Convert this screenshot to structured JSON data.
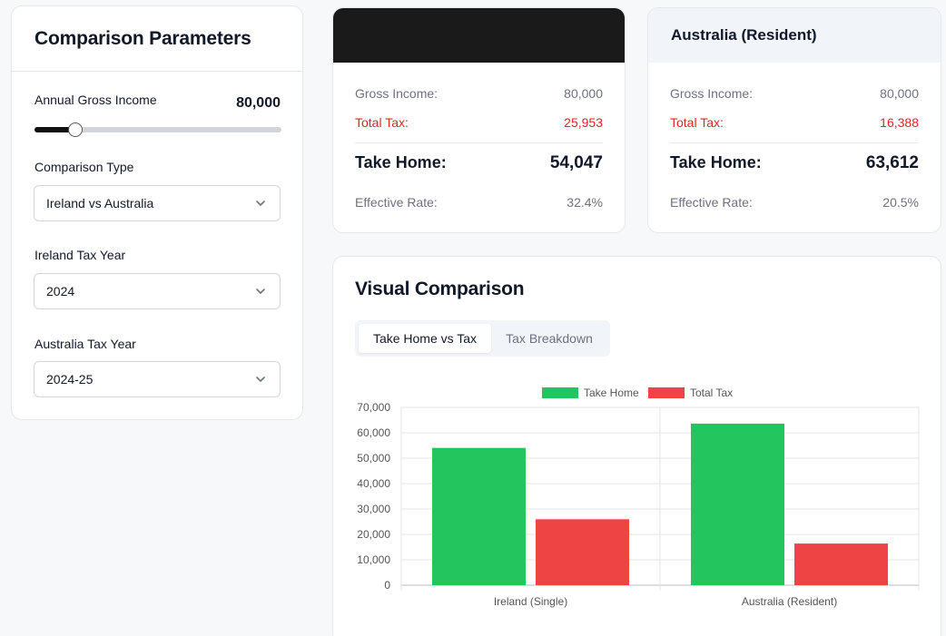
{
  "params": {
    "title": "Comparison Parameters",
    "income_label": "Annual Gross Income",
    "income_value": "80,000",
    "slider_fraction": 0.165,
    "comparison_type_label": "Comparison Type",
    "comparison_type_value": "Ireland vs Australia",
    "ireland_year_label": "Ireland Tax Year",
    "ireland_year_value": "2024",
    "australia_year_label": "Australia Tax Year",
    "australia_year_value": "2024-25"
  },
  "results": [
    {
      "title": "",
      "gross_label": "Gross Income:",
      "gross_value": "80,000",
      "tax_label": "Total Tax:",
      "tax_value": "25,953",
      "take_label": "Take Home:",
      "take_value": "54,047",
      "rate_label": "Effective Rate:",
      "rate_value": "32.4%"
    },
    {
      "title": "Australia (Resident)",
      "gross_label": "Gross Income:",
      "gross_value": "80,000",
      "tax_label": "Total Tax:",
      "tax_value": "16,388",
      "take_label": "Take Home:",
      "take_value": "63,612",
      "rate_label": "Effective Rate:",
      "rate_value": "20.5%"
    }
  ],
  "visual": {
    "title": "Visual Comparison",
    "tab_active": "Take Home vs Tax",
    "tab_inactive": "Tax Breakdown"
  },
  "colors": {
    "take_home": "#22c55e",
    "total_tax": "#ef4444",
    "tax_text": "#dc2626"
  },
  "icons": {
    "select_chevron": "chevron-down-icon"
  },
  "chart_data": {
    "type": "bar",
    "categories": [
      "Ireland (Single)",
      "Australia (Resident)"
    ],
    "series": [
      {
        "name": "Take Home",
        "values": [
          54047,
          63612
        ]
      },
      {
        "name": "Total Tax",
        "values": [
          25953,
          16388
        ]
      }
    ],
    "ylim": [
      0,
      70000
    ],
    "yticks": [
      "0",
      "10,000",
      "20,000",
      "30,000",
      "40,000",
      "50,000",
      "60,000",
      "70,000"
    ],
    "legend": "top-center",
    "grid": true
  }
}
